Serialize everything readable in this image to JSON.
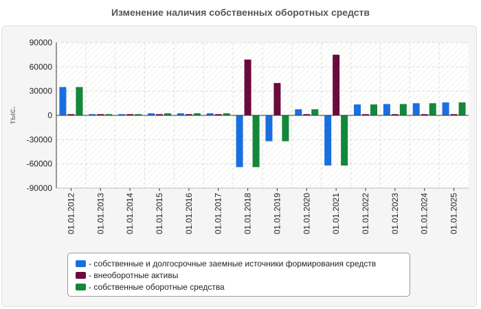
{
  "title": "Изменение наличия собственных оборотных средств",
  "chart_data": {
    "type": "bar",
    "title": "Изменение наличия собственных оборотных средств",
    "ylabel": "тыс.",
    "xlabel": "",
    "ylim": [
      -90000,
      90000
    ],
    "yticks": [
      90000,
      60000,
      30000,
      0,
      -30000,
      -60000,
      -90000
    ],
    "grid": true,
    "legend_position": "bottom",
    "categories": [
      "01.01.2012",
      "01.01.2013",
      "01.01.2014",
      "01.01.2015",
      "01.01.2016",
      "01.01.2017",
      "01.01.2018",
      "01.01.2019",
      "01.01.2020",
      "01.01.2021",
      "01.01.2022",
      "01.01.2023",
      "01.01.2024",
      "01.01.2025"
    ],
    "series": [
      {
        "name": "- собственные и долгосрочные заемные источники формирования средств",
        "color": "#1a6fe0",
        "values": [
          35000,
          1500,
          1500,
          2500,
          2500,
          2500,
          -64000,
          -32000,
          7500,
          -62000,
          13500,
          14000,
          15000,
          16000
        ]
      },
      {
        "name": "- внеоборотные активы",
        "color": "#6b0a3c",
        "values": [
          1500,
          1500,
          1500,
          1500,
          1500,
          1500,
          69000,
          40000,
          1500,
          75000,
          1500,
          1500,
          1500,
          1500
        ]
      },
      {
        "name": "- собственные оборотные средства",
        "color": "#13873a",
        "values": [
          35000,
          1500,
          1500,
          2500,
          2500,
          2500,
          -64000,
          -32000,
          7500,
          -62000,
          13500,
          14000,
          15000,
          16000
        ]
      }
    ]
  }
}
